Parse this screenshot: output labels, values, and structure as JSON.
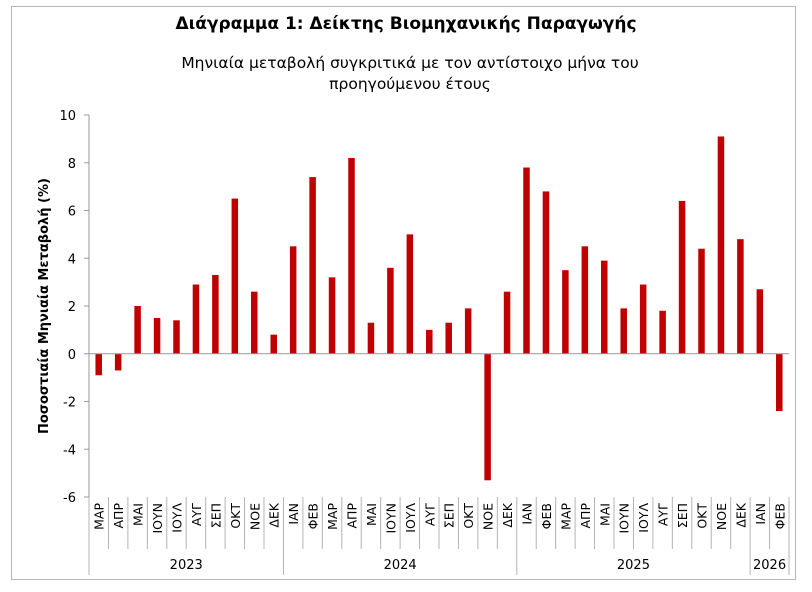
{
  "chart_data": {
    "type": "bar",
    "title": "Διάγραμμα 1: Δείκτης Βιομηχανικής Παραγωγής",
    "subtitle": "Μηνιαία μεταβολή συγκριτικά με τον αντίστοιχο μήνα του προηγούμενου έτους",
    "ylabel": "Ποσοστιαία Μηνιαία Μεταβολή (%)",
    "xlabel": "",
    "ylim": [
      -6,
      10
    ],
    "yticks": [
      -6,
      -4,
      -2,
      0,
      2,
      4,
      6,
      8,
      10
    ],
    "grid": false,
    "bar_color": "#c00000",
    "categories": [
      "ΜΑΡ",
      "ΑΠΡ",
      "ΜΑΙ",
      "ΙΟΥΝ",
      "ΙΟΥΛ",
      "ΑΥΓ",
      "ΣΕΠ",
      "ΟΚΤ",
      "ΝΟΕ",
      "ΔΕΚ",
      "ΙΑΝ",
      "ΦΕΒ",
      "ΜΑΡ",
      "ΑΠΡ",
      "ΜΑΙ",
      "ΙΟΥΝ",
      "ΙΟΥΛ",
      "ΑΥΓ",
      "ΣΕΠ",
      "ΟΚΤ",
      "ΝΟΕ",
      "ΔΕΚ",
      "ΙΑΝ",
      "ΦΕΒ",
      "ΜΑΡ",
      "ΑΠΡ",
      "ΜΑΙ",
      "ΙΟΥΝ",
      "ΙΟΥΛ",
      "ΑΥΓ",
      "ΣΕΠ",
      "ΟΚΤ",
      "ΝΟΕ",
      "ΔΕΚ",
      "ΙΑΝ",
      "ΦΕΒ"
    ],
    "values": [
      -0.9,
      -0.7,
      2.0,
      1.5,
      1.4,
      2.9,
      3.3,
      6.5,
      2.6,
      0.8,
      4.5,
      7.4,
      3.2,
      8.2,
      1.3,
      3.6,
      5.0,
      1.0,
      1.3,
      1.9,
      -5.3,
      2.6,
      7.8,
      6.8,
      3.5,
      4.5,
      3.9,
      1.9,
      2.9,
      1.8,
      6.4,
      4.4,
      9.1,
      4.8,
      2.7,
      -2.4
    ],
    "groups": [
      {
        "label": "2023",
        "count": 10
      },
      {
        "label": "2024",
        "count": 12
      },
      {
        "label": "2025",
        "count": 12
      },
      {
        "label": "2026",
        "count": 2
      }
    ]
  }
}
